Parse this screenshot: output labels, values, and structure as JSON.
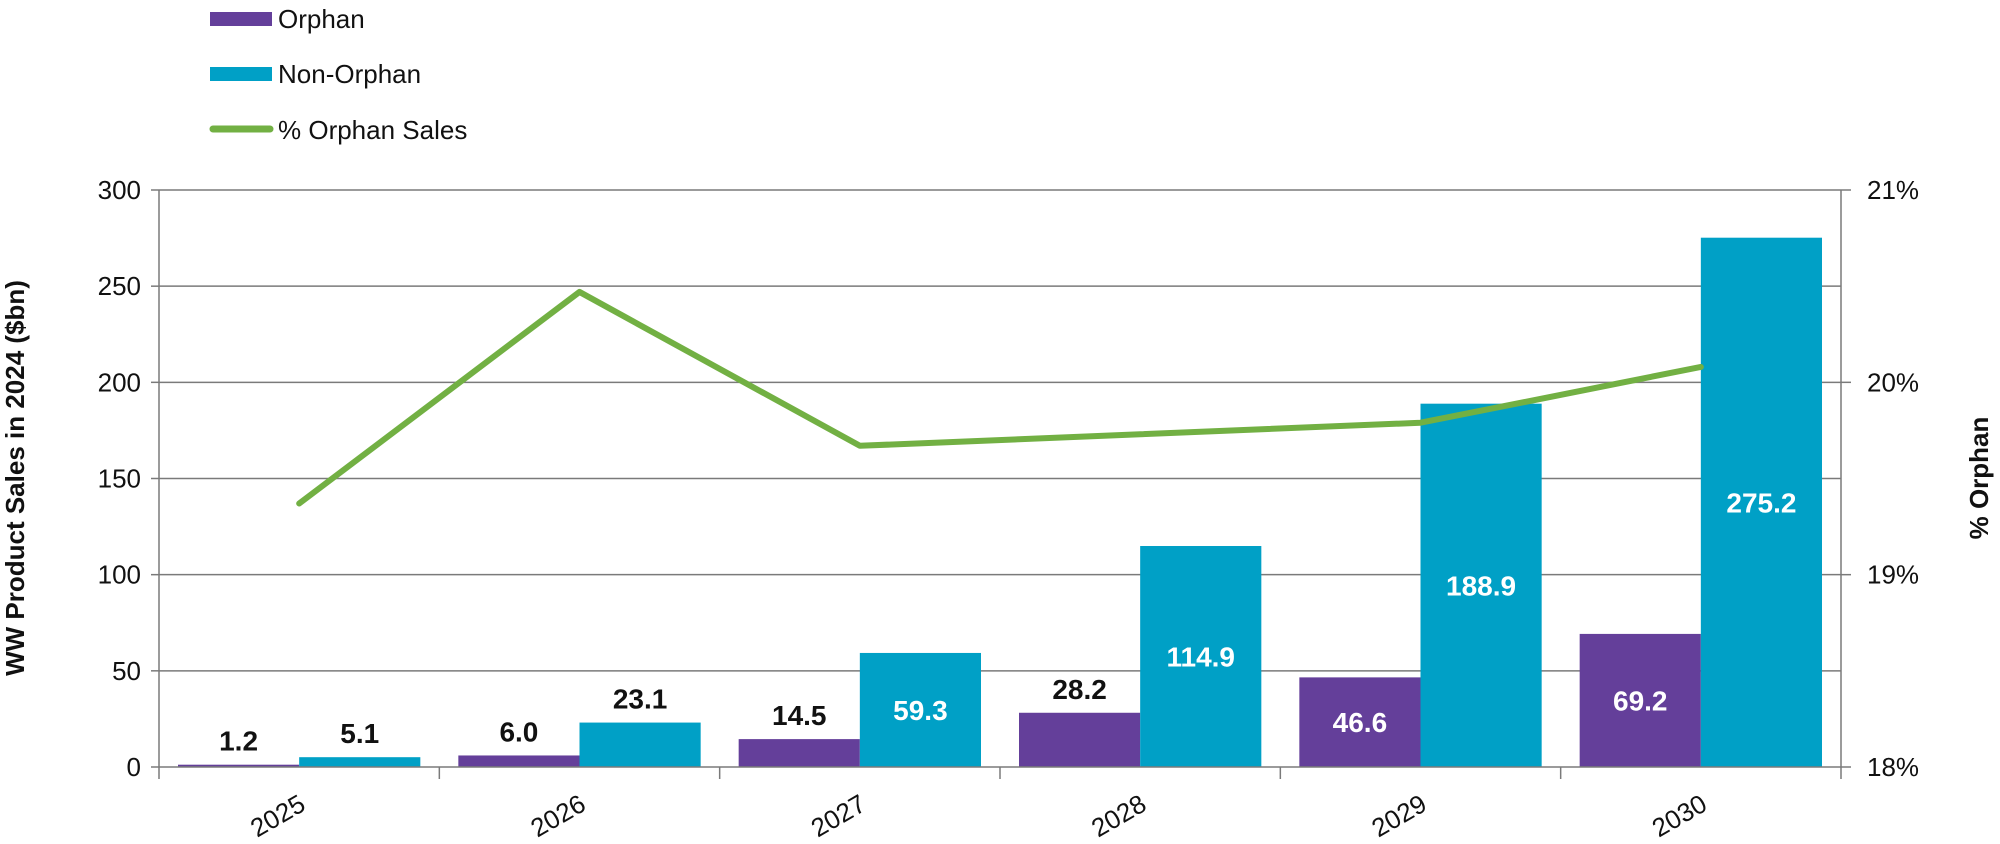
{
  "chart_data": {
    "type": "bar",
    "categories": [
      "2025",
      "2026",
      "2027",
      "2028",
      "2029",
      "2030"
    ],
    "series": [
      {
        "name": "Orphan",
        "type": "bar",
        "axis": "left",
        "color": "#643f9a",
        "values": [
          1.2,
          6.0,
          14.5,
          28.2,
          46.6,
          69.2
        ]
      },
      {
        "name": "Non-Orphan",
        "type": "bar",
        "axis": "left",
        "color": "#00a0c6",
        "values": [
          5.1,
          23.1,
          59.3,
          114.9,
          188.9,
          275.2
        ]
      },
      {
        "name": "% Orphan Sales",
        "type": "line",
        "axis": "right",
        "color": "#72b043",
        "values": [
          19.37,
          20.47,
          19.67,
          19.73,
          19.79,
          20.08
        ]
      }
    ],
    "data_labels": {
      "Orphan": [
        "1.2",
        "6.0",
        "14.5",
        "28.2",
        "46.6",
        "69.2"
      ],
      "Non-Orphan": [
        "5.1",
        "23.1",
        "59.3",
        "114.9",
        "188.9",
        "275.2"
      ]
    },
    "ylabel": "WW Product Sales in 2024 ($bn)",
    "y2label": "% Orphan",
    "ylim": [
      0,
      300
    ],
    "yticks": [
      "0",
      "50",
      "100",
      "150",
      "200",
      "250",
      "300"
    ],
    "y2lim": [
      18,
      21
    ],
    "y2ticks": [
      "18%",
      "19%",
      "20%",
      "21%"
    ],
    "grid": true,
    "legend_placement": "top-left"
  }
}
